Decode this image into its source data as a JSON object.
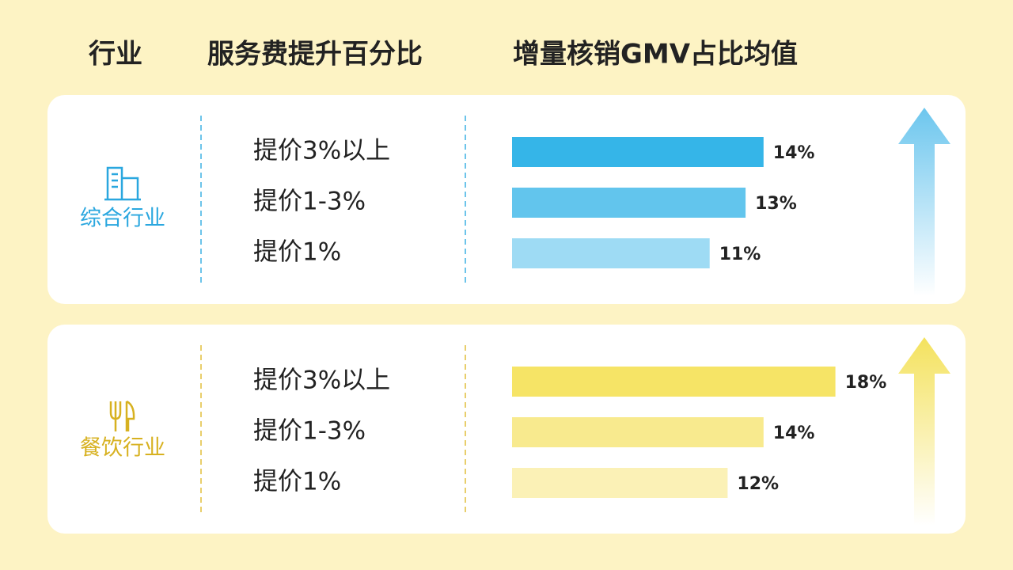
{
  "header": {
    "columns": [
      "行业",
      "服务费提升百分比",
      "增量核销GMV占比均值"
    ]
  },
  "chart_data": [
    {
      "type": "bar",
      "title": "综合行业",
      "title_color": "#2aa7df",
      "divider_color": "#3bb0e4",
      "categories": [
        "提价3%以上",
        "提价1-3%",
        "提价1%"
      ],
      "values": [
        14,
        13,
        11
      ],
      "value_labels": [
        "14%",
        "13%",
        "11%"
      ],
      "colors": [
        "#35b5e8",
        "#62c5ed",
        "#9edbf4"
      ],
      "arrow_color": "#7ccbef"
    },
    {
      "type": "bar",
      "title": "餐饮行业",
      "title_color": "#d7b120",
      "divider_color": "#e0bd3a",
      "categories": [
        "提价3%以上",
        "提价1-3%",
        "提价1%"
      ],
      "values": [
        18,
        14,
        12
      ],
      "value_labels": [
        "18%",
        "14%",
        "12%"
      ],
      "colors": [
        "#f6e466",
        "#f8ea8e",
        "#fbf1b6"
      ],
      "arrow_color": "#f6e466"
    }
  ]
}
